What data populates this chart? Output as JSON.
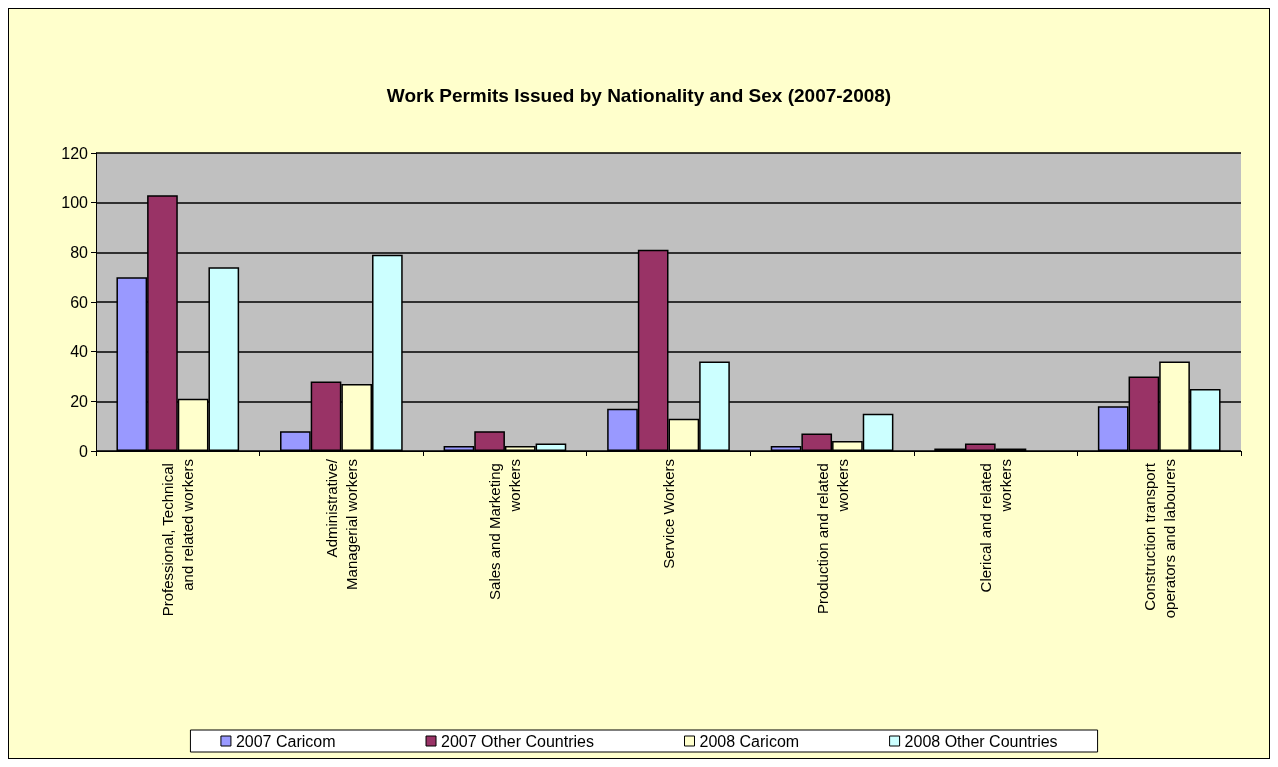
{
  "chart_data": {
    "type": "bar",
    "title": "Work Permits Issued by Nationality and Sex (2007-2008)",
    "categories": [
      "Professional, Technical and related workers",
      "Administrative/Managerial workers",
      "Sales and Marketing workers",
      "Service Workers",
      "Production and related workers",
      "Clerical and related workers",
      "Construction transport operators and labourers"
    ],
    "series": [
      {
        "name": "2007 Caricom",
        "color": "#9999ff",
        "values": [
          70,
          8,
          2,
          17,
          2,
          1,
          18
        ]
      },
      {
        "name": "2007 Other Countries",
        "color": "#993366",
        "values": [
          103,
          28,
          8,
          81,
          7,
          3,
          30
        ]
      },
      {
        "name": "2008 Caricom",
        "color": "#ffffcc",
        "values": [
          21,
          27,
          2,
          13,
          4,
          1,
          36
        ]
      },
      {
        "name": "2008 Other Countries",
        "color": "#ccffff",
        "values": [
          74,
          79,
          3,
          36,
          15,
          null,
          25
        ]
      }
    ],
    "ylim": [
      0,
      120
    ],
    "yticks": [
      0,
      20,
      40,
      60,
      80,
      100,
      120
    ],
    "grid": "y",
    "legend": "bottom"
  }
}
